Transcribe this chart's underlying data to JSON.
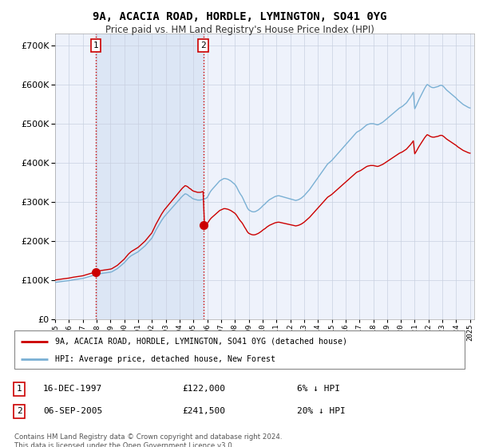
{
  "title": "9A, ACACIA ROAD, HORDLE, LYMINGTON, SO41 0YG",
  "subtitle": "Price paid vs. HM Land Registry's House Price Index (HPI)",
  "ylim": [
    0,
    730000
  ],
  "yticks": [
    0,
    100000,
    200000,
    300000,
    400000,
    500000,
    600000,
    700000
  ],
  "sale1_x": 1997.958,
  "sale1_price": 122000,
  "sale2_x": 2005.708,
  "sale2_price": 241500,
  "legend_red": "9A, ACACIA ROAD, HORDLE, LYMINGTON, SO41 0YG (detached house)",
  "legend_blue": "HPI: Average price, detached house, New Forest",
  "footer": "Contains HM Land Registry data © Crown copyright and database right 2024.\nThis data is licensed under the Open Government Licence v3.0.",
  "bg_color": "#eef2fb",
  "highlight_color": "#dce6f5",
  "red_color": "#cc0000",
  "blue_color": "#7ab0d4",
  "hpi_years": [
    1995.0,
    1995.1,
    1995.2,
    1995.3,
    1995.4,
    1995.5,
    1995.6,
    1995.7,
    1995.8,
    1995.9,
    1996.0,
    1996.1,
    1996.2,
    1996.3,
    1996.4,
    1996.5,
    1996.6,
    1996.7,
    1996.8,
    1996.9,
    1997.0,
    1997.1,
    1997.2,
    1997.3,
    1997.4,
    1997.5,
    1997.6,
    1997.7,
    1997.8,
    1997.9,
    1998.0,
    1998.1,
    1998.2,
    1998.3,
    1998.4,
    1998.5,
    1998.6,
    1998.7,
    1998.8,
    1998.9,
    1999.0,
    1999.1,
    1999.2,
    1999.3,
    1999.4,
    1999.5,
    1999.6,
    1999.7,
    1999.8,
    1999.9,
    2000.0,
    2000.1,
    2000.2,
    2000.3,
    2000.4,
    2000.5,
    2000.6,
    2000.7,
    2000.8,
    2000.9,
    2001.0,
    2001.1,
    2001.2,
    2001.3,
    2001.4,
    2001.5,
    2001.6,
    2001.7,
    2001.8,
    2001.9,
    2002.0,
    2002.1,
    2002.2,
    2002.3,
    2002.4,
    2002.5,
    2002.6,
    2002.7,
    2002.8,
    2002.9,
    2003.0,
    2003.1,
    2003.2,
    2003.3,
    2003.4,
    2003.5,
    2003.6,
    2003.7,
    2003.8,
    2003.9,
    2004.0,
    2004.1,
    2004.2,
    2004.3,
    2004.4,
    2004.5,
    2004.6,
    2004.7,
    2004.8,
    2004.9,
    2005.0,
    2005.1,
    2005.2,
    2005.3,
    2005.4,
    2005.5,
    2005.6,
    2005.7,
    2005.8,
    2005.9,
    2006.0,
    2006.1,
    2006.2,
    2006.3,
    2006.4,
    2006.5,
    2006.6,
    2006.7,
    2006.8,
    2006.9,
    2007.0,
    2007.1,
    2007.2,
    2007.3,
    2007.4,
    2007.5,
    2007.6,
    2007.7,
    2007.8,
    2007.9,
    2008.0,
    2008.1,
    2008.2,
    2008.3,
    2008.4,
    2008.5,
    2008.6,
    2008.7,
    2008.8,
    2008.9,
    2009.0,
    2009.1,
    2009.2,
    2009.3,
    2009.4,
    2009.5,
    2009.6,
    2009.7,
    2009.8,
    2009.9,
    2010.0,
    2010.1,
    2010.2,
    2010.3,
    2010.4,
    2010.5,
    2010.6,
    2010.7,
    2010.8,
    2010.9,
    2011.0,
    2011.1,
    2011.2,
    2011.3,
    2011.4,
    2011.5,
    2011.6,
    2011.7,
    2011.8,
    2011.9,
    2012.0,
    2012.1,
    2012.2,
    2012.3,
    2012.4,
    2012.5,
    2012.6,
    2012.7,
    2012.8,
    2012.9,
    2013.0,
    2013.1,
    2013.2,
    2013.3,
    2013.4,
    2013.5,
    2013.6,
    2013.7,
    2013.8,
    2013.9,
    2014.0,
    2014.1,
    2014.2,
    2014.3,
    2014.4,
    2014.5,
    2014.6,
    2014.7,
    2014.8,
    2014.9,
    2015.0,
    2015.1,
    2015.2,
    2015.3,
    2015.4,
    2015.5,
    2015.6,
    2015.7,
    2015.8,
    2015.9,
    2016.0,
    2016.1,
    2016.2,
    2016.3,
    2016.4,
    2016.5,
    2016.6,
    2016.7,
    2016.8,
    2016.9,
    2017.0,
    2017.1,
    2017.2,
    2017.3,
    2017.4,
    2017.5,
    2017.6,
    2017.7,
    2017.8,
    2017.9,
    2018.0,
    2018.1,
    2018.2,
    2018.3,
    2018.4,
    2018.5,
    2018.6,
    2018.7,
    2018.8,
    2018.9,
    2019.0,
    2019.1,
    2019.2,
    2019.3,
    2019.4,
    2019.5,
    2019.6,
    2019.7,
    2019.8,
    2019.9,
    2020.0,
    2020.1,
    2020.2,
    2020.3,
    2020.4,
    2020.5,
    2020.6,
    2020.7,
    2020.8,
    2020.9,
    2021.0,
    2021.1,
    2021.2,
    2021.3,
    2021.4,
    2021.5,
    2021.6,
    2021.7,
    2021.8,
    2021.9,
    2022.0,
    2022.1,
    2022.2,
    2022.3,
    2022.4,
    2022.5,
    2022.6,
    2022.7,
    2022.8,
    2022.9,
    2023.0,
    2023.1,
    2023.2,
    2023.3,
    2023.4,
    2023.5,
    2023.6,
    2023.7,
    2023.8,
    2023.9,
    2024.0,
    2024.1,
    2024.2,
    2024.3,
    2024.4,
    2024.5,
    2024.6,
    2024.7,
    2024.8,
    2024.9,
    2025.0
  ],
  "hpi_vals": [
    95000,
    95500,
    96000,
    96500,
    97000,
    97500,
    97800,
    98200,
    98600,
    99000,
    99500,
    100200,
    100800,
    101500,
    102000,
    102500,
    103000,
    103500,
    104000,
    104500,
    105000,
    106000,
    107000,
    108000,
    109000,
    110000,
    111000,
    112000,
    113000,
    114000,
    115000,
    116000,
    117000,
    117500,
    118000,
    118500,
    119000,
    119500,
    120000,
    120500,
    121000,
    122000,
    124000,
    126000,
    128000,
    130000,
    133000,
    136000,
    139000,
    142000,
    145000,
    149000,
    153000,
    157000,
    160000,
    163000,
    165000,
    167000,
    169000,
    171000,
    173000,
    176000,
    179000,
    182000,
    185000,
    188000,
    192000,
    196000,
    200000,
    204000,
    208000,
    215000,
    222000,
    229000,
    235000,
    241000,
    247000,
    253000,
    258000,
    263000,
    267000,
    271000,
    275000,
    279000,
    283000,
    287000,
    291000,
    295000,
    299000,
    303000,
    307000,
    311000,
    315000,
    318000,
    321000,
    320000,
    318000,
    315000,
    313000,
    310000,
    308000,
    307000,
    306000,
    305000,
    305000,
    305000,
    306000,
    307000,
    308000,
    309000,
    312000,
    318000,
    325000,
    330000,
    334000,
    338000,
    342000,
    346000,
    350000,
    354000,
    356000,
    358000,
    360000,
    360000,
    359000,
    358000,
    356000,
    354000,
    351000,
    348000,
    345000,
    340000,
    333000,
    326000,
    320000,
    315000,
    308000,
    300000,
    293000,
    285000,
    280000,
    278000,
    276000,
    275000,
    275000,
    276000,
    278000,
    280000,
    283000,
    286000,
    290000,
    293000,
    296000,
    300000,
    303000,
    306000,
    308000,
    310000,
    312000,
    314000,
    315000,
    316000,
    316000,
    315000,
    314000,
    313000,
    312000,
    311000,
    310000,
    309000,
    308000,
    307000,
    306000,
    305000,
    304000,
    305000,
    306000,
    308000,
    310000,
    313000,
    316000,
    320000,
    324000,
    328000,
    332000,
    337000,
    342000,
    347000,
    352000,
    357000,
    362000,
    367000,
    372000,
    377000,
    382000,
    387000,
    392000,
    397000,
    400000,
    403000,
    406000,
    410000,
    414000,
    418000,
    422000,
    426000,
    430000,
    434000,
    438000,
    442000,
    446000,
    450000,
    454000,
    458000,
    462000,
    466000,
    470000,
    474000,
    478000,
    480000,
    482000,
    484000,
    487000,
    490000,
    493000,
    496000,
    498000,
    499000,
    500000,
    500000,
    500000,
    499000,
    498000,
    497000,
    498000,
    500000,
    502000,
    504000,
    507000,
    510000,
    513000,
    516000,
    519000,
    522000,
    525000,
    528000,
    531000,
    534000,
    537000,
    540000,
    542000,
    544000,
    547000,
    550000,
    553000,
    558000,
    563000,
    568000,
    574000,
    580000,
    538000,
    545000,
    553000,
    561000,
    568000,
    575000,
    582000,
    589000,
    595000,
    600000,
    598000,
    595000,
    593000,
    592000,
    592000,
    593000,
    594000,
    595000,
    597000,
    598000,
    597000,
    594000,
    590000,
    586000,
    583000,
    580000,
    577000,
    574000,
    571000,
    568000,
    565000,
    561000,
    558000,
    555000,
    552000,
    549000,
    547000,
    545000,
    543000,
    541000,
    540000
  ]
}
